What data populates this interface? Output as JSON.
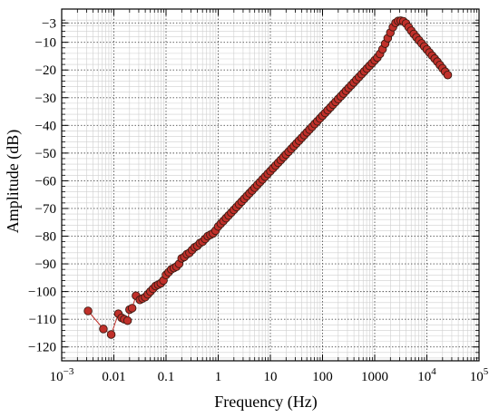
{
  "chart_data": {
    "type": "scatter",
    "title": "",
    "xlabel": "Frequency (Hz)",
    "ylabel": "Amplitude (dB)",
    "x_scale": "log",
    "xlim": [
      0.001,
      100000
    ],
    "ylim": [
      -125,
      2
    ],
    "grid": true,
    "x_ticks": [
      {
        "value": 0.001,
        "base": "10",
        "exp": "−3"
      },
      {
        "value": 0.01,
        "label": "0.01"
      },
      {
        "value": 0.1,
        "label": "0.1"
      },
      {
        "value": 1,
        "label": "1"
      },
      {
        "value": 10,
        "label": "10"
      },
      {
        "value": 100,
        "label": "100"
      },
      {
        "value": 1000,
        "label": "1000"
      },
      {
        "value": 10000,
        "base": "10",
        "exp": "4"
      },
      {
        "value": 100000,
        "base": "10",
        "exp": "5"
      }
    ],
    "y_ticks": [
      -3,
      -10,
      -20,
      -30,
      -40,
      -50,
      -60,
      -70,
      -80,
      -90,
      -100,
      -110,
      -120
    ],
    "colors": {
      "marker_fill": "#c0302a",
      "marker_edge": "#3a1a12",
      "line": "#c0302a",
      "grid_major": "#555555",
      "grid_minor": "#cfcfcf"
    },
    "series": [
      {
        "points": [
          [
            0.0032,
            -107
          ],
          [
            0.0063,
            -113.5
          ],
          [
            0.0089,
            -115.5
          ],
          [
            0.0122,
            -108
          ],
          [
            0.0141,
            -109.5
          ],
          [
            0.0158,
            -110
          ],
          [
            0.0183,
            -110.5
          ],
          [
            0.02,
            -106.5
          ],
          [
            0.0224,
            -106
          ],
          [
            0.0266,
            -101.5
          ],
          [
            0.0316,
            -103
          ],
          [
            0.0355,
            -102.5
          ],
          [
            0.0398,
            -102
          ],
          [
            0.0447,
            -101
          ],
          [
            0.0501,
            -100
          ],
          [
            0.0562,
            -99
          ],
          [
            0.0631,
            -98
          ],
          [
            0.0708,
            -97.5
          ],
          [
            0.0794,
            -97
          ],
          [
            0.0891,
            -96
          ],
          [
            0.1,
            -94
          ],
          [
            0.1122,
            -93
          ],
          [
            0.1259,
            -92
          ],
          [
            0.1413,
            -91.5
          ],
          [
            0.1585,
            -91
          ],
          [
            0.1778,
            -90
          ],
          [
            0.1995,
            -88
          ],
          [
            0.2239,
            -87.5
          ],
          [
            0.2512,
            -86.5
          ],
          [
            0.2818,
            -86
          ],
          [
            0.3162,
            -85
          ],
          [
            0.3548,
            -84
          ],
          [
            0.3981,
            -83.5
          ],
          [
            0.4467,
            -82.5
          ],
          [
            0.5012,
            -82
          ],
          [
            0.5623,
            -81
          ],
          [
            0.631,
            -80
          ],
          [
            0.7079,
            -79.5
          ],
          [
            0.7943,
            -79
          ],
          [
            0.8913,
            -78
          ],
          [
            1,
            -76.5
          ],
          [
            1.122,
            -75.5
          ],
          [
            1.259,
            -74.5
          ],
          [
            1.413,
            -73.5
          ],
          [
            1.585,
            -72.5
          ],
          [
            1.778,
            -71.5
          ],
          [
            1.995,
            -70.5
          ],
          [
            2.239,
            -69.5
          ],
          [
            2.512,
            -68.5
          ],
          [
            2.818,
            -67.5
          ],
          [
            3.162,
            -66.5
          ],
          [
            3.548,
            -65.5
          ],
          [
            3.981,
            -64.5
          ],
          [
            4.467,
            -63.5
          ],
          [
            5.012,
            -62.5
          ],
          [
            5.623,
            -61.5
          ],
          [
            6.31,
            -60.5
          ],
          [
            7.079,
            -59.5
          ],
          [
            7.943,
            -58.5
          ],
          [
            8.913,
            -57.5
          ],
          [
            10,
            -56.5
          ],
          [
            11.22,
            -55.5
          ],
          [
            12.59,
            -54.5
          ],
          [
            14.13,
            -53.5
          ],
          [
            15.85,
            -52.5
          ],
          [
            17.78,
            -51.5
          ],
          [
            19.95,
            -50.5
          ],
          [
            22.39,
            -49.5
          ],
          [
            25.12,
            -48.5
          ],
          [
            28.18,
            -47.5
          ],
          [
            31.62,
            -46.5
          ],
          [
            35.48,
            -45.5
          ],
          [
            39.81,
            -44.5
          ],
          [
            44.67,
            -43.5
          ],
          [
            50.12,
            -42.5
          ],
          [
            56.23,
            -41.5
          ],
          [
            63.1,
            -40.5
          ],
          [
            70.79,
            -39.5
          ],
          [
            79.43,
            -38.5
          ],
          [
            89.13,
            -37.5
          ],
          [
            100,
            -36.5
          ],
          [
            112.2,
            -35.5
          ],
          [
            125.9,
            -34.5
          ],
          [
            141.3,
            -33.5
          ],
          [
            158.5,
            -32.5
          ],
          [
            177.8,
            -31.5
          ],
          [
            199.5,
            -30.5
          ],
          [
            223.9,
            -29.5
          ],
          [
            251.2,
            -28.5
          ],
          [
            281.8,
            -27.5
          ],
          [
            316.2,
            -26.5
          ],
          [
            354.8,
            -25.5
          ],
          [
            398.1,
            -24.5
          ],
          [
            446.7,
            -23.5
          ],
          [
            501.2,
            -22.5
          ],
          [
            562.3,
            -21.5
          ],
          [
            631,
            -20.5
          ],
          [
            707.9,
            -19.5
          ],
          [
            794.3,
            -18.5
          ],
          [
            891.3,
            -17.5
          ],
          [
            1000,
            -16.5
          ],
          [
            1122,
            -15.5
          ],
          [
            1259,
            -14.2
          ],
          [
            1413,
            -12.5
          ],
          [
            1585,
            -10.5
          ],
          [
            1778,
            -8.5
          ],
          [
            1995,
            -6.5
          ],
          [
            2239,
            -4.5
          ],
          [
            2512,
            -3.0
          ],
          [
            2818,
            -2.3
          ],
          [
            3162,
            -2.2
          ],
          [
            3548,
            -2.4
          ],
          [
            3981,
            -3.2
          ],
          [
            4467,
            -4.5
          ],
          [
            5012,
            -5.8
          ],
          [
            5623,
            -7.0
          ],
          [
            6310,
            -8.2
          ],
          [
            7079,
            -9.3
          ],
          [
            7943,
            -10.4
          ],
          [
            8913,
            -11.5
          ],
          [
            10000,
            -12.6
          ],
          [
            11220,
            -13.7
          ],
          [
            12590,
            -14.8
          ],
          [
            14130,
            -15.9
          ],
          [
            15850,
            -17
          ],
          [
            17780,
            -18.2
          ],
          [
            19950,
            -19.4
          ],
          [
            22390,
            -20.6
          ],
          [
            25120,
            -21.8
          ]
        ]
      }
    ]
  }
}
